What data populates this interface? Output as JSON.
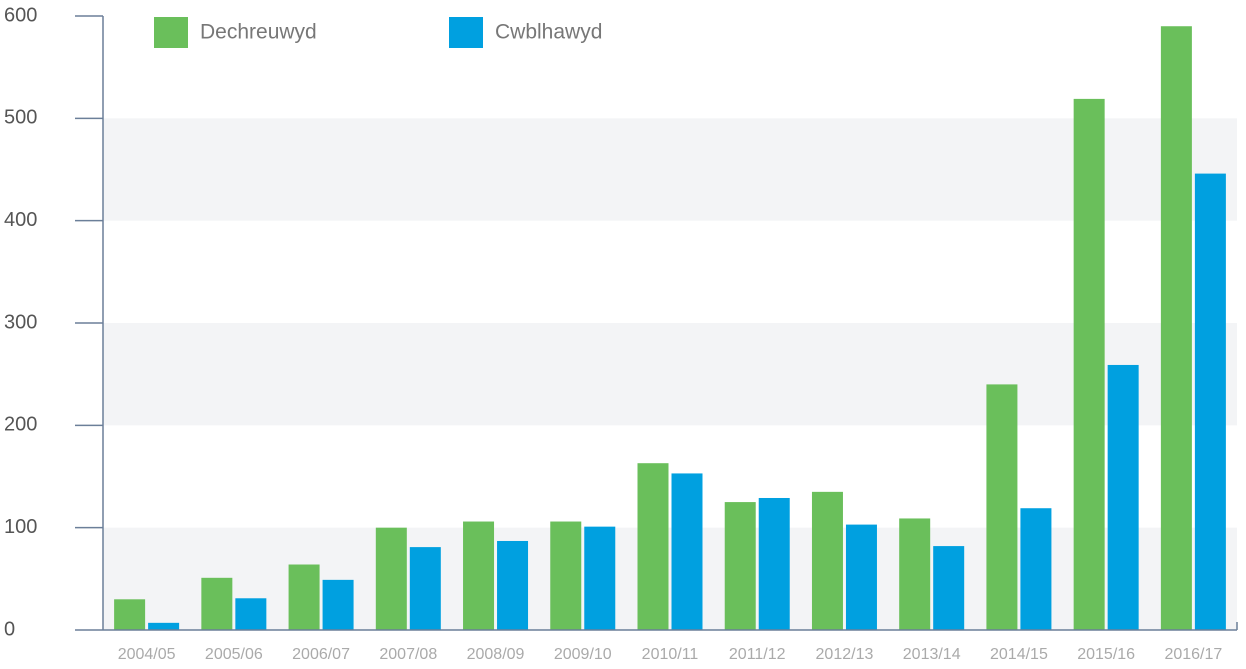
{
  "chart_data": {
    "type": "bar",
    "categories": [
      "2004/05",
      "2005/06",
      "2006/07",
      "2007/08",
      "2008/09",
      "2009/10",
      "2010/11",
      "2011/12",
      "2012/13",
      "2013/14",
      "2014/15",
      "2015/16",
      "2016/17"
    ],
    "series": [
      {
        "name": "Dechreuwyd",
        "color": "#6abf5b",
        "values": [
          30,
          51,
          64,
          100,
          106,
          106,
          163,
          125,
          135,
          109,
          240,
          519,
          590
        ]
      },
      {
        "name": "Cwblhawyd",
        "color": "#00a0e0",
        "values": [
          7,
          31,
          49,
          81,
          87,
          101,
          153,
          129,
          103,
          82,
          119,
          259,
          446
        ]
      }
    ],
    "ylim": [
      0,
      600
    ],
    "yticks": [
      0,
      100,
      200,
      300,
      400,
      500,
      600
    ],
    "grid": "bands",
    "legend": "top-left"
  }
}
